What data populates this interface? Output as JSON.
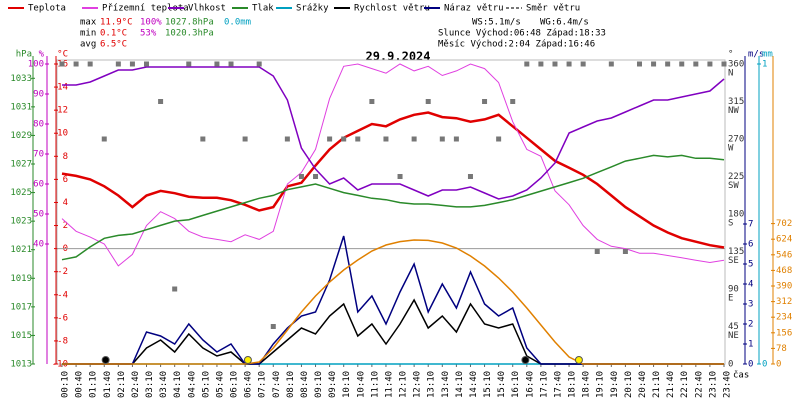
{
  "chart_data": {
    "type": "line",
    "date": "29.9.2024",
    "x_label": "čas",
    "x": [
      "00:10",
      "00:40",
      "01:10",
      "01:40",
      "02:10",
      "02:40",
      "03:10",
      "03:40",
      "04:10",
      "04:40",
      "05:10",
      "05:40",
      "06:10",
      "06:40",
      "07:10",
      "07:40",
      "08:10",
      "08:40",
      "09:10",
      "09:40",
      "10:10",
      "10:40",
      "11:10",
      "11:40",
      "12:10",
      "12:40",
      "13:10",
      "13:40",
      "14:10",
      "14:40",
      "15:10",
      "15:40",
      "16:10",
      "16:40",
      "17:10",
      "17:40",
      "18:10",
      "18:40",
      "19:10",
      "19:40",
      "20:10",
      "20:40",
      "21:10",
      "21:40",
      "22:10",
      "22:40",
      "23:10",
      "23:40"
    ],
    "axes": {
      "hpa": {
        "label": "hPa",
        "color": "#2a8a2a",
        "lim": [
          1013,
          1034
        ],
        "ticks": [
          1013,
          1015,
          1017,
          1019,
          1021,
          1023,
          1025,
          1027,
          1029,
          1031,
          1033
        ]
      },
      "pct": {
        "label": "%",
        "color": "#c000c0",
        "lim": [
          0,
          100
        ],
        "ticks": [
          40,
          50,
          60,
          70,
          80,
          90,
          100
        ]
      },
      "temp": {
        "label": "°C",
        "color": "#e00000",
        "lim": [
          -10,
          16
        ],
        "ticks": [
          16,
          14,
          12,
          10,
          8,
          6,
          4,
          2,
          0,
          -2,
          -4,
          -6,
          -8,
          -10
        ]
      },
      "dir": {
        "label": "°",
        "color": "#333333",
        "lim": [
          0,
          360
        ],
        "ticks": [
          0,
          45,
          90,
          135,
          180,
          225,
          270,
          315,
          360
        ],
        "tick_names": [
          "",
          "NE",
          "E",
          "SE",
          "S",
          "SW",
          "W",
          "NW",
          "N"
        ]
      },
      "ms": {
        "label": "m/s",
        "color": "#000080",
        "lim": [
          0,
          15
        ],
        "ticks": [
          0,
          1,
          2,
          3,
          4,
          5,
          6,
          7
        ]
      },
      "mm": {
        "label": "mm",
        "color": "#00a0c0",
        "lim": [
          0,
          1
        ],
        "ticks": [
          0,
          1
        ]
      },
      "sol": {
        "color": "#e08000",
        "lim": [
          0,
          1500
        ],
        "ticks": [
          0,
          78,
          156,
          234,
          312,
          390,
          468,
          546,
          624,
          702
        ]
      }
    },
    "series": [
      {
        "name": "Teplota",
        "color": "#e00000",
        "axis": "temp",
        "values": [
          6.5,
          6.3,
          6.0,
          5.4,
          4.6,
          3.6,
          4.6,
          5.0,
          4.8,
          4.5,
          4.4,
          4.4,
          4.2,
          3.8,
          3.3,
          3.6,
          5.4,
          5.7,
          7.2,
          8.6,
          9.6,
          10.2,
          10.8,
          10.6,
          11.2,
          11.6,
          11.8,
          11.4,
          11.3,
          11.0,
          11.2,
          11.6,
          10.6,
          9.6,
          8.6,
          7.6,
          7.0,
          6.4,
          5.6,
          4.6,
          3.6,
          2.8,
          2.0,
          1.4,
          0.9,
          0.6,
          0.3,
          0.1
        ]
      },
      {
        "name": "Přízemní teplota",
        "color": "#e040e0",
        "axis": "temp",
        "values": [
          2.6,
          1.5,
          1.0,
          0.4,
          -1.5,
          -0.5,
          2.0,
          3.2,
          2.6,
          1.5,
          1.0,
          0.8,
          0.6,
          1.2,
          0.8,
          1.5,
          5.6,
          6.6,
          8.6,
          13.0,
          15.8,
          16.0,
          15.6,
          15.2,
          16.0,
          15.4,
          15.8,
          15.0,
          15.4,
          16.0,
          15.6,
          14.4,
          11.0,
          8.6,
          8.0,
          5.0,
          3.8,
          2.0,
          0.8,
          0.2,
          0.0,
          -0.4,
          -0.4,
          -0.6,
          -0.8,
          -1.0,
          -1.2,
          -1.0
        ]
      },
      {
        "name": "Vlhkost",
        "color": "#8000c0",
        "axis": "pct",
        "values": [
          93,
          93,
          94,
          96,
          98,
          98,
          99,
          99,
          99,
          99,
          99,
          99,
          99,
          99,
          99,
          96,
          88,
          72,
          65,
          60,
          62,
          58,
          60,
          60,
          60,
          58,
          56,
          58,
          58,
          59,
          57,
          55,
          56,
          58,
          62,
          67,
          77,
          79,
          81,
          82,
          84,
          86,
          88,
          88,
          89,
          90,
          91,
          95
        ]
      },
      {
        "name": "Tlak",
        "color": "#2a8a2a",
        "axis": "hpa",
        "values": [
          1020.3,
          1020.5,
          1021.2,
          1021.8,
          1022.0,
          1022.1,
          1022.4,
          1022.7,
          1023.0,
          1023.1,
          1023.4,
          1023.7,
          1024.0,
          1024.3,
          1024.6,
          1024.8,
          1025.2,
          1025.4,
          1025.6,
          1025.3,
          1025.0,
          1024.8,
          1024.6,
          1024.5,
          1024.3,
          1024.2,
          1024.2,
          1024.1,
          1024.0,
          1024.0,
          1024.1,
          1024.3,
          1024.5,
          1024.8,
          1025.1,
          1025.4,
          1025.7,
          1026.0,
          1026.4,
          1026.8,
          1027.2,
          1027.4,
          1027.6,
          1027.5,
          1027.6,
          1027.4,
          1027.4,
          1027.3
        ]
      },
      {
        "name": "Srážky",
        "color": "#00a0c0",
        "axis": "mm",
        "values": [
          0,
          0,
          0,
          0,
          0,
          0,
          0,
          0,
          0,
          0,
          0,
          0,
          0,
          0,
          0,
          0,
          0,
          0,
          0,
          0,
          0,
          0,
          0,
          0,
          0,
          0,
          0,
          0,
          0,
          0,
          0,
          0,
          0,
          0,
          0,
          0,
          0,
          0,
          0,
          0,
          0,
          0,
          0,
          0,
          0,
          0,
          0,
          0
        ]
      },
      {
        "name": "Rychlost větru",
        "color": "#000000",
        "axis": "ms",
        "values": [
          0,
          0,
          0,
          0,
          0,
          0,
          0.8,
          1.2,
          0.6,
          1.5,
          0.8,
          0.4,
          0.6,
          0,
          0,
          0.6,
          1.2,
          1.8,
          1.5,
          2.4,
          3.0,
          1.4,
          2.0,
          1.0,
          2.0,
          3.2,
          1.8,
          2.4,
          1.6,
          3.0,
          2.0,
          1.8,
          2.0,
          0.4,
          0,
          0,
          0,
          0,
          0,
          0,
          0,
          0,
          0,
          0,
          0,
          0,
          0,
          0
        ]
      },
      {
        "name": "Náraz větru",
        "color": "#000080",
        "axis": "ms",
        "values": [
          0,
          0,
          0,
          0,
          0,
          0,
          1.6,
          1.4,
          1.0,
          2.0,
          1.2,
          0.6,
          1.0,
          0,
          0,
          1.0,
          1.8,
          2.4,
          2.6,
          4.2,
          6.4,
          2.6,
          3.4,
          2.0,
          3.6,
          5.0,
          2.6,
          4.0,
          2.8,
          4.6,
          3.0,
          2.4,
          2.8,
          0.8,
          0,
          0,
          0,
          0,
          0,
          0,
          0,
          0,
          0,
          0,
          0,
          0,
          0,
          0
        ]
      },
      {
        "name": "Směr větru",
        "color": "#777777",
        "axis": "dir",
        "marker": "square",
        "values": [
          360,
          360,
          360,
          270,
          360,
          360,
          360,
          315,
          90,
          360,
          270,
          360,
          360,
          270,
          360,
          45,
          270,
          225,
          225,
          270,
          270,
          270,
          315,
          270,
          225,
          270,
          315,
          270,
          270,
          225,
          315,
          270,
          315,
          360,
          360,
          360,
          360,
          360,
          135,
          360,
          135,
          360,
          360,
          360,
          360,
          360,
          360,
          360
        ]
      },
      {
        "color": "#e08000",
        "axis": "sol",
        "values": [
          0,
          0,
          0,
          0,
          0,
          0,
          0,
          0,
          0,
          0,
          0,
          0,
          0,
          0,
          10,
          80,
          170,
          260,
          340,
          410,
          470,
          520,
          565,
          595,
          612,
          620,
          618,
          605,
          580,
          540,
          490,
          430,
          360,
          280,
          195,
          110,
          35,
          0,
          0,
          0,
          0,
          0,
          0,
          0,
          0,
          0,
          0,
          0
        ]
      }
    ],
    "stats": [
      {
        "label": "max",
        "values": [
          "11.9°C",
          "100%",
          "1027.8hPa",
          "0.0mm"
        ]
      },
      {
        "label": "min",
        "values": [
          "0.1°C",
          "53%",
          "1020.3hPa"
        ]
      },
      {
        "label": "avg",
        "values": [
          "6.5°C"
        ]
      }
    ],
    "wind": [
      "WS:5.1m/s",
      "WG:6.4m/s"
    ],
    "sun": "Slunce Východ:06:48 Západ:18:33",
    "moon": "Měsíc Východ:2:04 Západ:16:46"
  }
}
